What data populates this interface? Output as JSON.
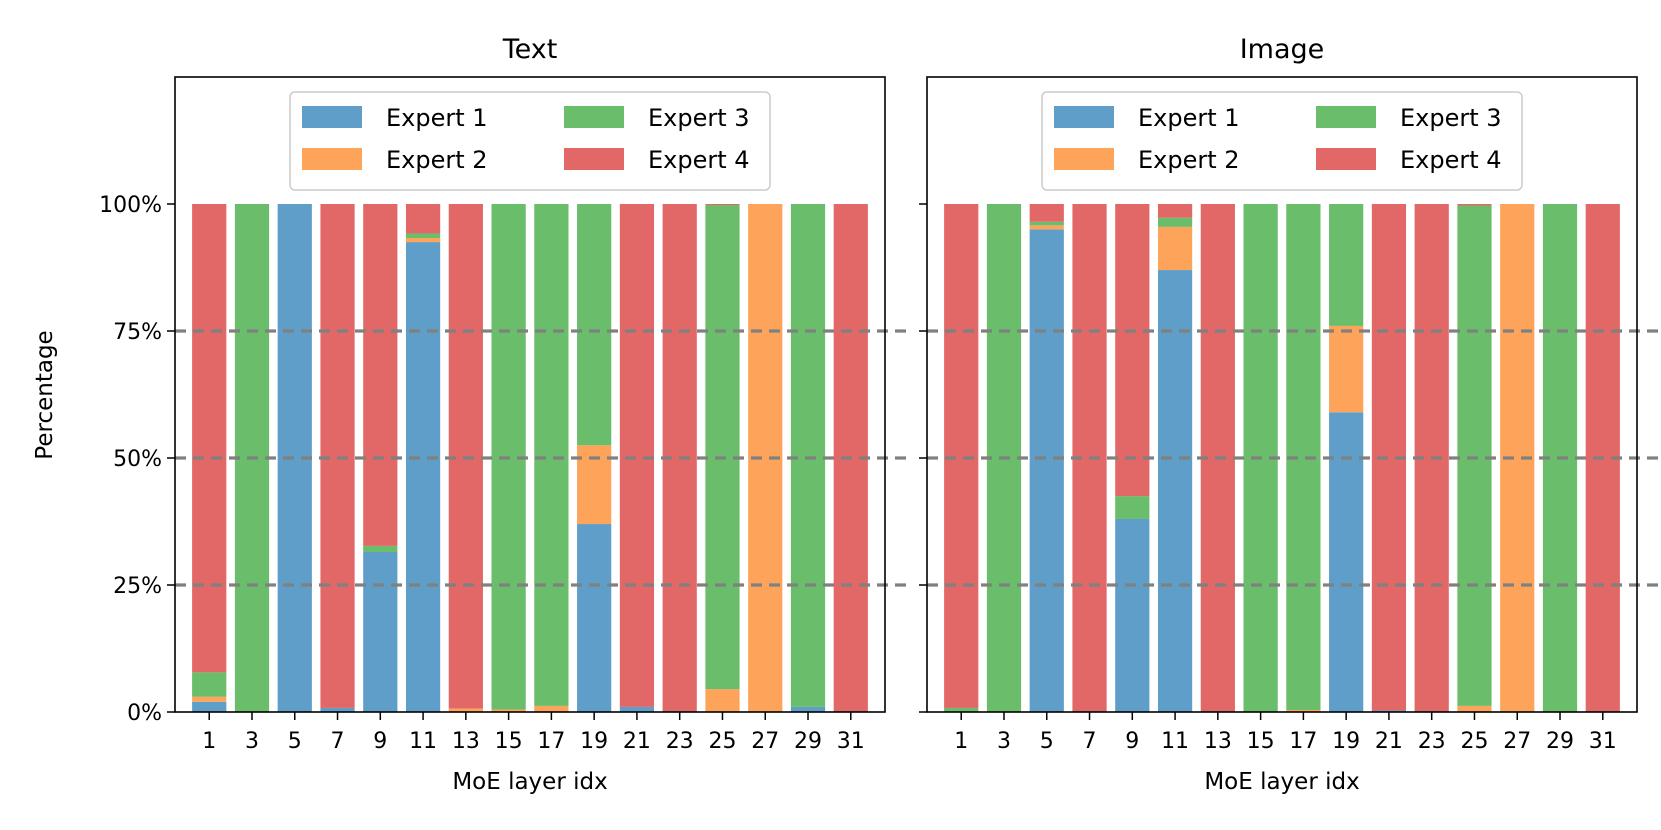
{
  "chart_data": {
    "type": "bar",
    "stacked": true,
    "ylabel": "Percentage",
    "xlabel": "MoE layer idx",
    "ylim": [
      0,
      125
    ],
    "yticks": [
      0,
      25,
      50,
      75,
      100
    ],
    "ytick_labels": [
      "0%",
      "25%",
      "50%",
      "75%",
      "100%"
    ],
    "reference_lines": [
      25,
      50,
      75
    ],
    "categories": [
      "1",
      "3",
      "5",
      "7",
      "9",
      "11",
      "13",
      "15",
      "17",
      "19",
      "21",
      "23",
      "25",
      "27",
      "29",
      "31"
    ],
    "legend": {
      "position": "upper-center",
      "entries": [
        "Expert 1",
        "Expert 2",
        "Expert 3",
        "Expert 4"
      ]
    },
    "colors": {
      "Expert 1": "#5f9ec9",
      "Expert 2": "#fea45a",
      "Expert 3": "#6abd6a",
      "Expert 4": "#e26767",
      "grid": "#808080"
    },
    "panels": [
      {
        "title": "Text",
        "series": [
          {
            "name": "Expert 1",
            "values": [
              2,
              0,
              100,
              0.8,
              31.5,
              92.5,
              0,
              0,
              0,
              37,
              1,
              0,
              0,
              0,
              1,
              0
            ]
          },
          {
            "name": "Expert 2",
            "values": [
              1,
              0,
              0,
              0,
              0,
              0.8,
              0.7,
              0.5,
              1.2,
              15.5,
              0,
              0,
              4.5,
              100,
              0,
              0
            ]
          },
          {
            "name": "Expert 3",
            "values": [
              4.8,
              100,
              0,
              0,
              1.2,
              0.9,
              0,
              99.5,
              98.8,
              47.5,
              0,
              0,
              95.3,
              0,
              99,
              0
            ]
          },
          {
            "name": "Expert 4",
            "values": [
              92.2,
              0,
              0,
              99.2,
              67.3,
              5.8,
              99.3,
              0,
              0,
              0,
              99,
              100,
              0.2,
              0,
              0,
              100
            ]
          }
        ]
      },
      {
        "title": "Image",
        "series": [
          {
            "name": "Expert 1",
            "values": [
              0,
              0,
              95,
              0,
              38,
              87,
              0,
              0,
              0,
              59,
              0.3,
              0,
              0,
              0,
              0,
              0
            ]
          },
          {
            "name": "Expert 2",
            "values": [
              0,
              0,
              0.8,
              0,
              0,
              8.5,
              0,
              0,
              0.4,
              17,
              0,
              0,
              1.2,
              100,
              0,
              0
            ]
          },
          {
            "name": "Expert 3",
            "values": [
              0.8,
              100,
              0.7,
              0,
              4.5,
              1.8,
              0,
              100,
              99.6,
              24,
              0,
              0,
              98.5,
              0,
              100,
              0
            ]
          },
          {
            "name": "Expert 4",
            "values": [
              99.2,
              0,
              3.5,
              100,
              57.5,
              2.7,
              100,
              0,
              0,
              0,
              99.7,
              100,
              0.3,
              0,
              0,
              100
            ]
          }
        ]
      }
    ]
  }
}
